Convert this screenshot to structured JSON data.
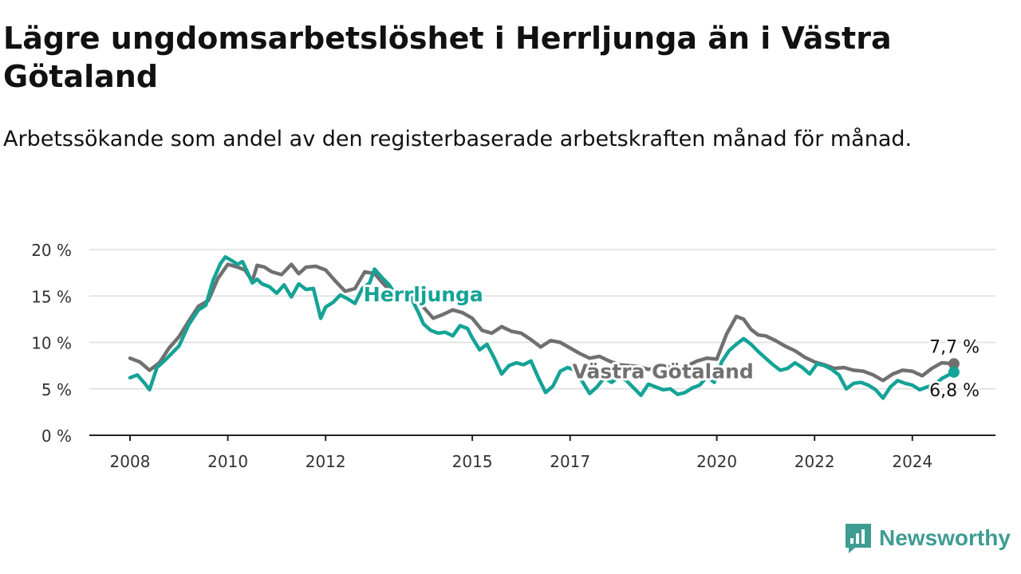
{
  "colors": {
    "herrljunga": "#14a396",
    "vastra": "#707070",
    "grid": "#dddddd",
    "axis": "#222222",
    "brand": "#3e9c92"
  },
  "brand": {
    "name": "Newsworthy",
    "icon": "newsworthy-logo-icon"
  },
  "chart_data": {
    "type": "line",
    "title": "Lägre ungdomsarbetslöshet i Herrljunga än i Västra Götaland",
    "subtitle": "Arbetssökande som andel av den registerbaserade arbetskraften månad för månad.",
    "xlabel": "",
    "ylabel": "",
    "ylim": [
      0,
      20
    ],
    "xlim": [
      2008,
      2025.7
    ],
    "grid": true,
    "y_ticks": [
      {
        "value": 0,
        "label": "0 %"
      },
      {
        "value": 5,
        "label": "5 %"
      },
      {
        "value": 10,
        "label": "10 %"
      },
      {
        "value": 15,
        "label": "15 %"
      },
      {
        "value": 20,
        "label": "20 %"
      }
    ],
    "x_ticks": [
      {
        "value": 2008,
        "label": "2008"
      },
      {
        "value": 2010,
        "label": "2010"
      },
      {
        "value": 2012,
        "label": "2012"
      },
      {
        "value": 2015,
        "label": "2015"
      },
      {
        "value": 2017,
        "label": "2017"
      },
      {
        "value": 2020,
        "label": "2020"
      },
      {
        "value": 2022,
        "label": "2022"
      },
      {
        "value": 2024,
        "label": "2024"
      }
    ],
    "series": [
      {
        "name": "Västra Götaland",
        "color": "#707070",
        "points": [
          [
            2008.0,
            8.3
          ],
          [
            2008.2,
            7.9
          ],
          [
            2008.4,
            7.0
          ],
          [
            2008.6,
            7.8
          ],
          [
            2008.8,
            9.4
          ],
          [
            2009.0,
            10.6
          ],
          [
            2009.2,
            12.3
          ],
          [
            2009.4,
            13.9
          ],
          [
            2009.6,
            14.5
          ],
          [
            2009.8,
            16.9
          ],
          [
            2010.0,
            18.4
          ],
          [
            2010.2,
            18.1
          ],
          [
            2010.35,
            17.8
          ],
          [
            2010.5,
            16.6
          ],
          [
            2010.6,
            18.3
          ],
          [
            2010.75,
            18.1
          ],
          [
            2010.9,
            17.6
          ],
          [
            2011.1,
            17.3
          ],
          [
            2011.3,
            18.4
          ],
          [
            2011.45,
            17.4
          ],
          [
            2011.6,
            18.1
          ],
          [
            2011.8,
            18.2
          ],
          [
            2012.0,
            17.8
          ],
          [
            2012.2,
            16.6
          ],
          [
            2012.4,
            15.5
          ],
          [
            2012.6,
            15.8
          ],
          [
            2012.8,
            17.6
          ],
          [
            2013.0,
            17.4
          ],
          [
            2013.2,
            16.2
          ],
          [
            2013.4,
            15.2
          ],
          [
            2013.6,
            15.5
          ],
          [
            2013.8,
            15.3
          ],
          [
            2014.0,
            13.8
          ],
          [
            2014.2,
            12.6
          ],
          [
            2014.4,
            13.0
          ],
          [
            2014.6,
            13.5
          ],
          [
            2014.8,
            13.2
          ],
          [
            2015.0,
            12.6
          ],
          [
            2015.2,
            11.3
          ],
          [
            2015.4,
            11.0
          ],
          [
            2015.6,
            11.7
          ],
          [
            2015.8,
            11.2
          ],
          [
            2016.0,
            11.0
          ],
          [
            2016.2,
            10.3
          ],
          [
            2016.4,
            9.5
          ],
          [
            2016.6,
            10.2
          ],
          [
            2016.8,
            10.0
          ],
          [
            2017.0,
            9.4
          ],
          [
            2017.2,
            8.8
          ],
          [
            2017.4,
            8.3
          ],
          [
            2017.6,
            8.5
          ],
          [
            2017.8,
            8.0
          ],
          [
            2018.0,
            7.6
          ],
          [
            2018.2,
            7.5
          ],
          [
            2018.4,
            7.4
          ],
          [
            2018.6,
            7.1
          ],
          [
            2018.8,
            7.2
          ],
          [
            2019.0,
            7.4
          ],
          [
            2019.2,
            7.2
          ],
          [
            2019.4,
            7.5
          ],
          [
            2019.6,
            8.0
          ],
          [
            2019.8,
            8.3
          ],
          [
            2020.0,
            8.2
          ],
          [
            2020.2,
            10.9
          ],
          [
            2020.4,
            12.8
          ],
          [
            2020.55,
            12.5
          ],
          [
            2020.7,
            11.4
          ],
          [
            2020.85,
            10.8
          ],
          [
            2021.0,
            10.7
          ],
          [
            2021.2,
            10.2
          ],
          [
            2021.4,
            9.6
          ],
          [
            2021.6,
            9.1
          ],
          [
            2021.8,
            8.4
          ],
          [
            2022.0,
            7.9
          ],
          [
            2022.2,
            7.6
          ],
          [
            2022.4,
            7.2
          ],
          [
            2022.6,
            7.3
          ],
          [
            2022.8,
            7.0
          ],
          [
            2023.0,
            6.9
          ],
          [
            2023.2,
            6.5
          ],
          [
            2023.4,
            5.9
          ],
          [
            2023.6,
            6.6
          ],
          [
            2023.8,
            7.0
          ],
          [
            2024.0,
            6.9
          ],
          [
            2024.2,
            6.4
          ],
          [
            2024.4,
            7.2
          ],
          [
            2024.6,
            7.8
          ],
          [
            2024.85,
            7.7
          ]
        ],
        "last_label": "7,7 %"
      },
      {
        "name": "Herrljunga",
        "color": "#14a396",
        "points": [
          [
            2008.0,
            6.2
          ],
          [
            2008.15,
            6.5
          ],
          [
            2008.3,
            5.6
          ],
          [
            2008.4,
            4.9
          ],
          [
            2008.55,
            7.3
          ],
          [
            2008.7,
            8.0
          ],
          [
            2008.85,
            8.8
          ],
          [
            2009.0,
            9.6
          ],
          [
            2009.2,
            11.9
          ],
          [
            2009.4,
            13.5
          ],
          [
            2009.55,
            14.0
          ],
          [
            2009.7,
            16.7
          ],
          [
            2009.85,
            18.5
          ],
          [
            2009.95,
            19.2
          ],
          [
            2010.05,
            18.9
          ],
          [
            2010.2,
            18.4
          ],
          [
            2010.3,
            18.7
          ],
          [
            2010.4,
            17.6
          ],
          [
            2010.5,
            16.4
          ],
          [
            2010.6,
            16.8
          ],
          [
            2010.7,
            16.3
          ],
          [
            2010.85,
            16.0
          ],
          [
            2011.0,
            15.3
          ],
          [
            2011.15,
            16.2
          ],
          [
            2011.3,
            14.9
          ],
          [
            2011.45,
            16.3
          ],
          [
            2011.6,
            15.7
          ],
          [
            2011.75,
            15.8
          ],
          [
            2011.9,
            12.6
          ],
          [
            2012.0,
            13.8
          ],
          [
            2012.15,
            14.3
          ],
          [
            2012.3,
            15.1
          ],
          [
            2012.45,
            14.7
          ],
          [
            2012.6,
            14.2
          ],
          [
            2012.75,
            15.8
          ],
          [
            2012.9,
            16.4
          ],
          [
            2013.0,
            17.9
          ],
          [
            2013.15,
            17.0
          ],
          [
            2013.3,
            16.2
          ],
          [
            2013.45,
            15.0
          ],
          [
            2013.6,
            15.6
          ],
          [
            2013.75,
            14.8
          ],
          [
            2013.9,
            13.2
          ],
          [
            2014.0,
            12.0
          ],
          [
            2014.15,
            11.3
          ],
          [
            2014.3,
            11.0
          ],
          [
            2014.45,
            11.1
          ],
          [
            2014.6,
            10.7
          ],
          [
            2014.75,
            11.8
          ],
          [
            2014.9,
            11.5
          ],
          [
            2015.0,
            10.5
          ],
          [
            2015.15,
            9.2
          ],
          [
            2015.3,
            9.8
          ],
          [
            2015.45,
            8.3
          ],
          [
            2015.6,
            6.6
          ],
          [
            2015.75,
            7.5
          ],
          [
            2015.9,
            7.8
          ],
          [
            2016.05,
            7.6
          ],
          [
            2016.2,
            8.0
          ],
          [
            2016.35,
            6.2
          ],
          [
            2016.5,
            4.6
          ],
          [
            2016.65,
            5.3
          ],
          [
            2016.8,
            6.9
          ],
          [
            2016.95,
            7.3
          ],
          [
            2017.1,
            7.0
          ],
          [
            2017.25,
            5.8
          ],
          [
            2017.4,
            4.5
          ],
          [
            2017.55,
            5.2
          ],
          [
            2017.7,
            6.2
          ],
          [
            2017.85,
            5.7
          ],
          [
            2018.0,
            6.3
          ],
          [
            2018.15,
            5.9
          ],
          [
            2018.3,
            5.1
          ],
          [
            2018.45,
            4.3
          ],
          [
            2018.6,
            5.5
          ],
          [
            2018.75,
            5.2
          ],
          [
            2018.9,
            4.9
          ],
          [
            2019.05,
            5.0
          ],
          [
            2019.2,
            4.4
          ],
          [
            2019.35,
            4.6
          ],
          [
            2019.5,
            5.1
          ],
          [
            2019.65,
            5.4
          ],
          [
            2019.8,
            6.3
          ],
          [
            2019.95,
            5.7
          ],
          [
            2020.1,
            7.9
          ],
          [
            2020.25,
            9.1
          ],
          [
            2020.4,
            9.8
          ],
          [
            2020.55,
            10.4
          ],
          [
            2020.7,
            9.8
          ],
          [
            2020.85,
            9.0
          ],
          [
            2021.0,
            8.3
          ],
          [
            2021.15,
            7.6
          ],
          [
            2021.3,
            7.0
          ],
          [
            2021.45,
            7.2
          ],
          [
            2021.6,
            7.8
          ],
          [
            2021.75,
            7.3
          ],
          [
            2021.9,
            6.6
          ],
          [
            2022.05,
            7.7
          ],
          [
            2022.2,
            7.5
          ],
          [
            2022.35,
            7.1
          ],
          [
            2022.5,
            6.5
          ],
          [
            2022.65,
            5.0
          ],
          [
            2022.8,
            5.6
          ],
          [
            2022.95,
            5.7
          ],
          [
            2023.1,
            5.4
          ],
          [
            2023.25,
            4.9
          ],
          [
            2023.4,
            4.0
          ],
          [
            2023.55,
            5.2
          ],
          [
            2023.7,
            5.9
          ],
          [
            2023.85,
            5.6
          ],
          [
            2024.0,
            5.4
          ],
          [
            2024.15,
            4.9
          ],
          [
            2024.3,
            5.2
          ],
          [
            2024.45,
            5.4
          ],
          [
            2024.6,
            6.1
          ],
          [
            2024.85,
            6.8
          ]
        ],
        "last_label": "6,8 %"
      }
    ],
    "annotations": [
      {
        "text": "Herrljunga",
        "series": "Herrljunga",
        "x": 2014.0,
        "y": 15.2
      },
      {
        "text": "Västra Götaland",
        "series": "Västra Götaland",
        "x": 2018.9,
        "y": 6.9
      }
    ]
  }
}
